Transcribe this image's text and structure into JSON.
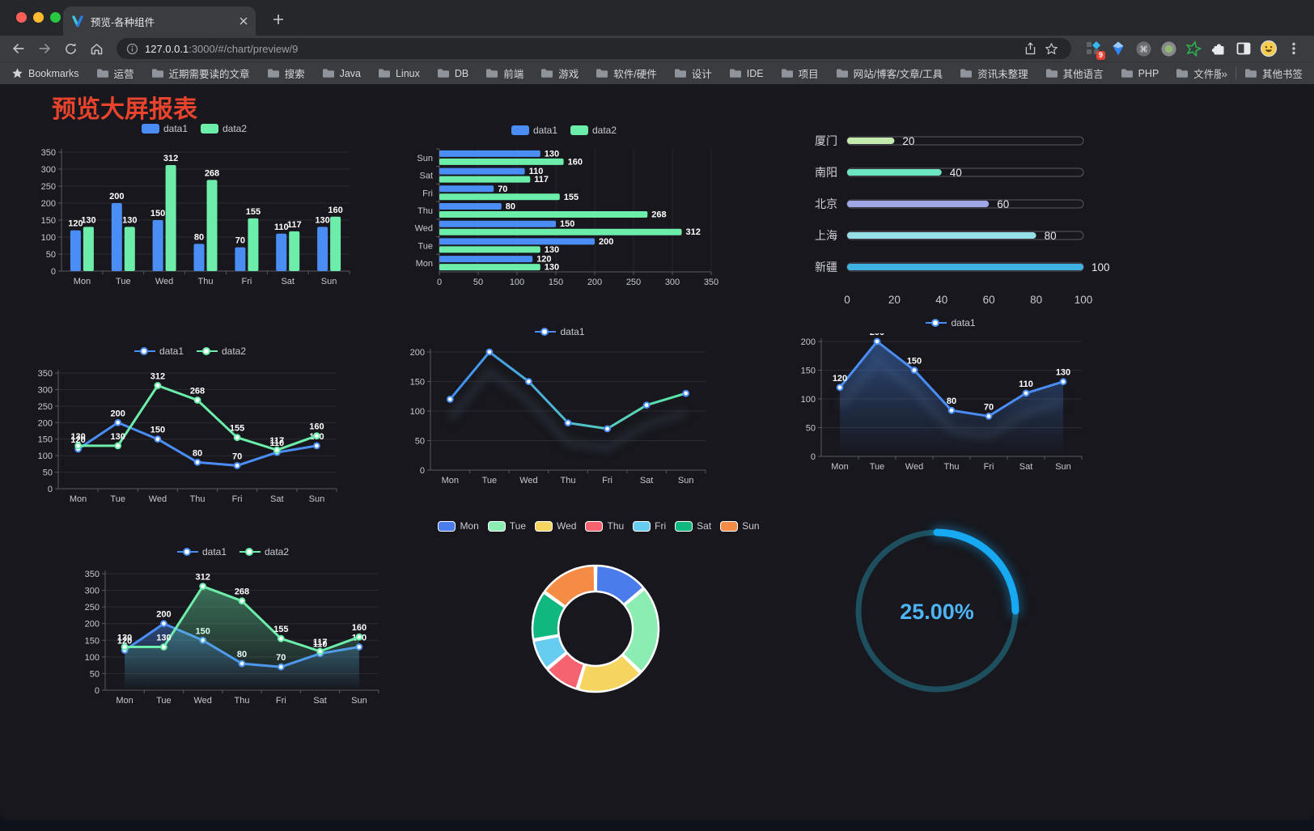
{
  "browser": {
    "tab": {
      "title": "预览-各种组件"
    },
    "url": {
      "host": "127.0.0.1",
      "path": ":3000/#/chart/preview/9"
    },
    "extensions": {
      "badge": "9"
    },
    "bookmarks": {
      "label": "Bookmarks",
      "folders": [
        "运营",
        "近期需要读的文章",
        "搜索",
        "Java",
        "Linux",
        "DB",
        "前端",
        "游戏",
        "软件/硬件",
        "设计",
        "IDE",
        "项目",
        "网站/博客/文章/工具",
        "资讯未整理",
        "其他语言",
        "PHP",
        "文件服务器"
      ],
      "overflow": "»",
      "other": "其他书签"
    }
  },
  "page": {
    "title": "预览大屏报表",
    "title_color": "#e8432d"
  },
  "chart_data": [
    {
      "id": "grouped-bar",
      "type": "bar",
      "legend_position": "top",
      "categories": [
        "Mon",
        "Tue",
        "Wed",
        "Thu",
        "Fri",
        "Sat",
        "Sun"
      ],
      "series": [
        {
          "name": "data1",
          "color": "#4a8df5",
          "values": [
            120,
            200,
            150,
            80,
            70,
            110,
            130
          ]
        },
        {
          "name": "data2",
          "color": "#6cedaa",
          "values": [
            130,
            130,
            312,
            268,
            155,
            117,
            160
          ]
        }
      ],
      "ylim": [
        0,
        350
      ],
      "ystep": 50
    },
    {
      "id": "grouped-horizontal-bar",
      "type": "bar",
      "orientation": "horizontal",
      "legend_position": "top",
      "categories": [
        "Mon",
        "Tue",
        "Wed",
        "Thu",
        "Fri",
        "Sat",
        "Sun"
      ],
      "display_order_top_to_bottom": [
        "Sun",
        "Sat",
        "Fri",
        "Thu",
        "Wed",
        "Tue",
        "Mon"
      ],
      "series": [
        {
          "name": "data1",
          "color": "#4a8df5",
          "values": [
            120,
            200,
            150,
            80,
            70,
            110,
            130
          ]
        },
        {
          "name": "data2",
          "color": "#6cedaa",
          "values": [
            130,
            130,
            312,
            268,
            155,
            117,
            160
          ]
        }
      ],
      "xlim": [
        0,
        350
      ],
      "xstep": 50
    },
    {
      "id": "city-progress-bars",
      "type": "bar",
      "subtype": "progress",
      "categories": [
        "厦门",
        "南阳",
        "北京",
        "上海",
        "新疆"
      ],
      "values": [
        20,
        40,
        60,
        80,
        100
      ],
      "colors": [
        "#c4ebad",
        "#6be6c1",
        "#a0a7e6",
        "#96dee8",
        "#3fb1e3"
      ],
      "xlim": [
        0,
        100
      ],
      "xticks": [
        0,
        20,
        40,
        60,
        80,
        100
      ]
    },
    {
      "id": "two-series-line",
      "type": "line",
      "legend_position": "top",
      "categories": [
        "Mon",
        "Tue",
        "Wed",
        "Thu",
        "Fri",
        "Sat",
        "Sun"
      ],
      "series": [
        {
          "name": "data1",
          "color": "#4a8df5",
          "values": [
            120,
            200,
            150,
            80,
            70,
            110,
            130
          ]
        },
        {
          "name": "data2",
          "color": "#6cedaa",
          "values": [
            130,
            130,
            312,
            268,
            155,
            117,
            160
          ]
        }
      ],
      "ylim": [
        0,
        350
      ],
      "ystep": 50,
      "show_point_labels": true
    },
    {
      "id": "gradient-line",
      "type": "line",
      "legend_position": "top",
      "categories": [
        "Mon",
        "Tue",
        "Wed",
        "Thu",
        "Fri",
        "Sat",
        "Sun"
      ],
      "series": [
        {
          "name": "data1",
          "gradient": [
            "#3f8ef5",
            "#5fe8a5"
          ],
          "marker_color": "#4a8df5",
          "values": [
            120,
            200,
            150,
            80,
            70,
            110,
            130
          ]
        }
      ],
      "ylim": [
        0,
        200
      ],
      "ystep": 50,
      "show_point_labels": false
    },
    {
      "id": "area-line",
      "type": "area",
      "legend_position": "top",
      "categories": [
        "Mon",
        "Tue",
        "Wed",
        "Thu",
        "Fri",
        "Sat",
        "Sun"
      ],
      "series": [
        {
          "name": "data1",
          "color": "#4a8df5",
          "area": true,
          "values": [
            120,
            200,
            150,
            80,
            70,
            110,
            130
          ]
        }
      ],
      "ylim": [
        0,
        200
      ],
      "ystep": 50,
      "show_point_labels": true
    },
    {
      "id": "two-series-area",
      "type": "area",
      "legend_position": "top",
      "categories": [
        "Mon",
        "Tue",
        "Wed",
        "Thu",
        "Fri",
        "Sat",
        "Sun"
      ],
      "series": [
        {
          "name": "data1",
          "color": "#4a8df5",
          "area": true,
          "values": [
            120,
            200,
            150,
            80,
            70,
            110,
            130
          ]
        },
        {
          "name": "data2",
          "color": "#6cedaa",
          "area": true,
          "values": [
            130,
            130,
            312,
            268,
            155,
            117,
            160
          ]
        }
      ],
      "ylim": [
        0,
        350
      ],
      "ystep": 50,
      "show_point_labels": true
    },
    {
      "id": "weekday-donut",
      "type": "pie",
      "donut": true,
      "legend_position": "top",
      "categories": [
        "Mon",
        "Tue",
        "Wed",
        "Thu",
        "Fri",
        "Sat",
        "Sun"
      ],
      "values": [
        120,
        200,
        150,
        80,
        70,
        110,
        130
      ],
      "colors": [
        "#4a7deb",
        "#8cedb3",
        "#f5d55f",
        "#f4636f",
        "#67cdf0",
        "#10b77f",
        "#f58c46"
      ]
    },
    {
      "id": "percent-gauge",
      "type": "gauge",
      "value": 25,
      "label": "25.00%",
      "arc_color": "#18a9f3",
      "track_color": "#1d4f5e",
      "text_color": "#4db5f5"
    }
  ]
}
